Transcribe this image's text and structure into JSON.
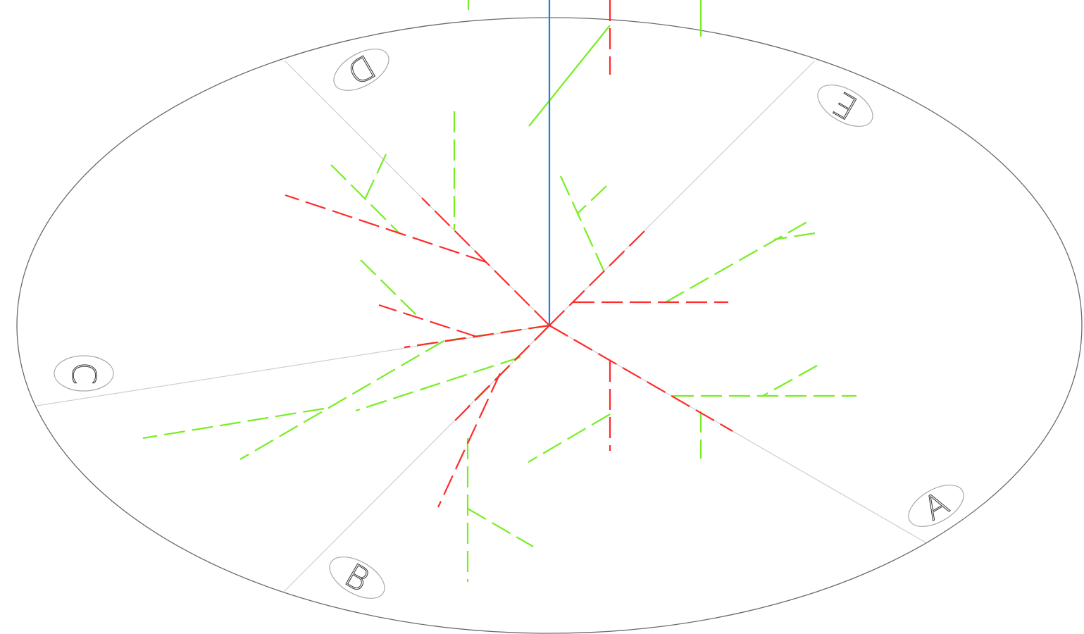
{
  "sections": [
    {
      "id": "section-a",
      "label": "A"
    },
    {
      "id": "section-b",
      "label": "B"
    },
    {
      "id": "section-c",
      "label": "C"
    },
    {
      "id": "section-d",
      "label": "D"
    },
    {
      "id": "section-e",
      "label": "E"
    }
  ],
  "colors": {
    "ring": "#6a6a6a",
    "divider": "#cfcfcf",
    "badge": "#a8a8a8",
    "axis": "#1f7fd6",
    "primary_branch": "#ff2a2a",
    "secondary_branch": "#77ee22"
  }
}
